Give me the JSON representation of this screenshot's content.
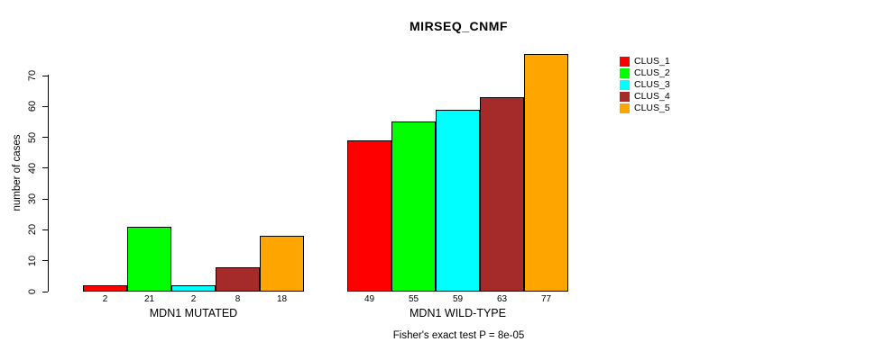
{
  "chart_data": {
    "type": "bar",
    "title": "MIRSEQ_CNMF",
    "ylabel": "number of cases",
    "xlabel": "",
    "ylim": [
      0,
      70
    ],
    "yticks": [
      0,
      10,
      20,
      30,
      40,
      50,
      60,
      70
    ],
    "grid": false,
    "legend_position": "right",
    "categories": [
      "MDN1 MUTATED",
      "MDN1 WILD-TYPE"
    ],
    "series": [
      {
        "name": "CLUS_1",
        "color": "#FF0000",
        "values": [
          2,
          49
        ]
      },
      {
        "name": "CLUS_2",
        "color": "#00FF00",
        "values": [
          21,
          55
        ]
      },
      {
        "name": "CLUS_3",
        "color": "#00FFFF",
        "values": [
          2,
          59
        ]
      },
      {
        "name": "CLUS_4",
        "color": "#A52A2A",
        "values": [
          8,
          63
        ]
      },
      {
        "name": "CLUS_5",
        "color": "#FFA500",
        "values": [
          18,
          77
        ]
      }
    ],
    "bar_border_color": "#000000",
    "annotation": "Fisher's exact test P = 8e-05"
  }
}
